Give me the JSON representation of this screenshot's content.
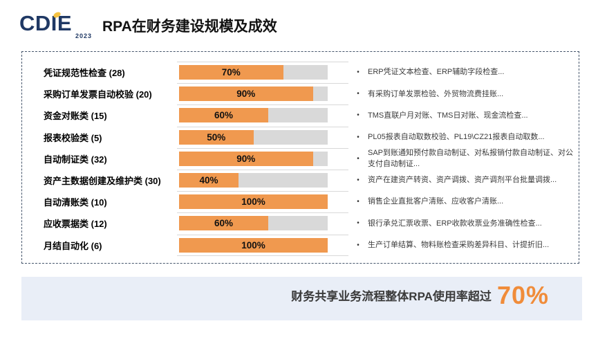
{
  "logo": {
    "text": "CDIE",
    "year": "2023"
  },
  "header": {
    "title": "RPA在财务建设规模及成效"
  },
  "chart_data": {
    "type": "bar",
    "orientation": "horizontal",
    "title": "RPA在财务建设规模及成效",
    "xlim": [
      0,
      100
    ],
    "grid": "row-separator-lines",
    "legend": "none",
    "bullet_marker": "•",
    "bar_color": "#F0994F",
    "track_color": "#D9D9D9",
    "categories": [
      "凭证规范性检查 (28)",
      "采购订单发票自动校验 (20)",
      "资金对账类 (15)",
      "报表校验类 (5)",
      "自动制证类 (32)",
      "资产主数据创建及维护类 (30)",
      "自动清账类 (10)",
      "应收票据类 (12)",
      "月结自动化 (6)"
    ],
    "values": [
      70,
      90,
      60,
      50,
      90,
      40,
      100,
      60,
      100
    ],
    "value_labels": [
      "70%",
      "90%",
      "60%",
      "50%",
      "90%",
      "40%",
      "100%",
      "60%",
      "100%"
    ],
    "descriptions": [
      "ERP凭证文本检查、ERP辅助字段检查...",
      "有采购订单发票检验、外贸物流费挂账...",
      "TMS直联户月对账、TMS日对账、现金流检查...",
      "PL05报表自动取数校验、PL19\\CZ21报表自动取数...",
      "SAP到账通知预付款自动制证、对私报销付款自动制证、对公支付自动制证...",
      "资产在建资产转资、资产调拨、资产调剂平台批量调拨...",
      "销售企业直批客户清账、应收客户清账...",
      "银行承兑汇票收票、ERP收款收票业务准确性检查...",
      "生产订单结算、物料账检查采购差异科目、计提折旧..."
    ]
  },
  "footer": {
    "label": "财务共享业务流程整体RPA使用率超过",
    "value": "70%"
  },
  "colors": {
    "logo_navy": "#1F3864",
    "logo_dot_yellow": "#F5C242",
    "bar_orange": "#F0994F",
    "track_gray": "#D9D9D9",
    "separator_gray": "#D8D8D8",
    "panel_border": "#44546A",
    "banner_bg": "#E9EEF7",
    "accent_orange": "#F08C3A"
  }
}
